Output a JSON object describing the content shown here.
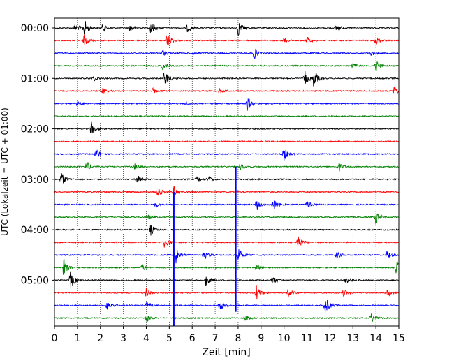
{
  "chart_data": {
    "type": "line",
    "title": "",
    "xlabel": "Zeit  [min]",
    "ylabel": "UTC (Lokalzeit = UTC + 01:00)",
    "xlim": [
      0,
      15
    ],
    "x_ticks": [
      "0",
      "1",
      "2",
      "3",
      "4",
      "5",
      "6",
      "7",
      "8",
      "9",
      "10",
      "11",
      "12",
      "13",
      "14",
      "15"
    ],
    "y_ticks": [
      "00:00",
      "01:00",
      "02:00",
      "03:00",
      "04:00",
      "05:00"
    ],
    "grid": "vertical dotted lines at each minute",
    "trace_interval_min": 15,
    "colors_cycle": [
      "#000000",
      "#ff0000",
      "#0000ff",
      "#008000"
    ],
    "traces": [
      {
        "start": "00:00",
        "color": "#000000",
        "events": [
          [
            0.9,
            0.5
          ],
          [
            1.3,
            1.0
          ],
          [
            2.1,
            0.4
          ],
          [
            3.3,
            0.5
          ],
          [
            4.2,
            0.8
          ],
          [
            5.8,
            0.5
          ],
          [
            8.0,
            0.9
          ],
          [
            12.3,
            0.5
          ]
        ]
      },
      {
        "start": "00:15",
        "color": "#ff0000",
        "events": [
          [
            1.3,
            0.6
          ],
          [
            4.9,
            1.0
          ],
          [
            10.0,
            0.3
          ],
          [
            11.0,
            0.4
          ],
          [
            14.0,
            0.4
          ]
        ]
      },
      {
        "start": "00:30",
        "color": "#0000ff",
        "events": [
          [
            4.7,
            0.3
          ],
          [
            6.0,
            0.3
          ],
          [
            8.7,
            0.7
          ],
          [
            13.8,
            0.3
          ]
        ]
      },
      {
        "start": "00:45",
        "color": "#008000",
        "events": [
          [
            4.7,
            0.4
          ],
          [
            13.0,
            0.3
          ],
          [
            14.0,
            0.7
          ]
        ]
      },
      {
        "start": "01:00",
        "color": "#000000",
        "events": [
          [
            1.7,
            0.3
          ],
          [
            4.8,
            1.0
          ],
          [
            10.9,
            0.9
          ],
          [
            11.3,
            1.0
          ]
        ]
      },
      {
        "start": "01:15",
        "color": "#ff0000",
        "events": [
          [
            2.1,
            0.3
          ],
          [
            4.3,
            0.3
          ],
          [
            7.2,
            0.3
          ],
          [
            14.8,
            0.6
          ]
        ]
      },
      {
        "start": "01:30",
        "color": "#0000ff",
        "events": [
          [
            1.0,
            0.3
          ],
          [
            5.7,
            0.2
          ],
          [
            8.4,
            0.8
          ]
        ]
      },
      {
        "start": "01:45",
        "color": "#008000",
        "events": []
      },
      {
        "start": "02:00",
        "color": "#000000",
        "events": [
          [
            1.6,
            0.8
          ]
        ]
      },
      {
        "start": "02:15",
        "color": "#ff0000",
        "events": []
      },
      {
        "start": "02:30",
        "color": "#0000ff",
        "events": [
          [
            1.8,
            0.6
          ],
          [
            10.0,
            0.7
          ]
        ]
      },
      {
        "start": "02:45",
        "color": "#008000",
        "events": [
          [
            1.4,
            0.6
          ],
          [
            3.5,
            0.3
          ],
          [
            8.1,
            0.4
          ],
          [
            12.4,
            0.5
          ]
        ]
      },
      {
        "start": "03:00",
        "color": "#000000",
        "events": [
          [
            0.3,
            0.8
          ],
          [
            3.6,
            0.5
          ],
          [
            6.2,
            0.3
          ],
          [
            6.7,
            0.4
          ]
        ]
      },
      {
        "start": "03:15",
        "color": "#ff0000",
        "events": [
          [
            4.5,
            0.6
          ],
          [
            5.2,
            0.6
          ]
        ]
      },
      {
        "start": "03:30",
        "color": "#0000ff",
        "events": [
          [
            4.4,
            0.3
          ],
          [
            8.8,
            0.8
          ],
          [
            9.5,
            0.9
          ],
          [
            11.0,
            0.4
          ]
        ]
      },
      {
        "start": "03:45",
        "color": "#008000",
        "events": [
          [
            4.1,
            0.3
          ],
          [
            14.0,
            0.8
          ]
        ]
      },
      {
        "start": "04:00",
        "color": "#000000",
        "events": [
          [
            4.2,
            0.6
          ]
        ]
      },
      {
        "start": "04:15",
        "color": "#ff0000",
        "events": [
          [
            4.8,
            0.8
          ],
          [
            10.6,
            1.0
          ]
        ]
      },
      {
        "start": "04:30",
        "color": "#0000ff",
        "events": [
          [
            5.3,
            1.0
          ],
          [
            6.5,
            0.6
          ],
          [
            8.0,
            1.0
          ],
          [
            12.3,
            0.4
          ],
          [
            14.5,
            0.5
          ]
        ]
      },
      {
        "start": "04:45",
        "color": "#008000",
        "events": [
          [
            0.4,
            1.0
          ],
          [
            3.8,
            0.4
          ],
          [
            8.8,
            0.4
          ],
          [
            14.9,
            0.8
          ]
        ]
      },
      {
        "start": "05:00",
        "color": "#000000",
        "events": [
          [
            0.7,
            1.0
          ],
          [
            6.6,
            0.7
          ],
          [
            9.5,
            0.5
          ],
          [
            12.7,
            0.4
          ]
        ]
      },
      {
        "start": "05:15",
        "color": "#ff0000",
        "events": [
          [
            4.0,
            0.5
          ],
          [
            8.8,
            1.0
          ],
          [
            10.2,
            0.6
          ],
          [
            12.6,
            0.4
          ],
          [
            14.5,
            0.5
          ]
        ]
      },
      {
        "start": "05:30",
        "color": "#0000ff",
        "events": [
          [
            2.3,
            0.5
          ],
          [
            4.0,
            0.4
          ],
          [
            7.2,
            0.6
          ],
          [
            11.8,
            1.0
          ]
        ]
      },
      {
        "start": "05:45",
        "color": "#008000",
        "events": [
          [
            4.0,
            0.5
          ],
          [
            8.3,
            0.3
          ],
          [
            13.8,
            0.6
          ]
        ]
      }
    ],
    "spikes": [
      {
        "x": 5.2,
        "from_trace": 13,
        "to_trace": 23.6,
        "color": "#0000ff"
      },
      {
        "x": 7.9,
        "from_trace": 11,
        "to_trace": 22.5,
        "color": "#0000ff"
      }
    ]
  }
}
